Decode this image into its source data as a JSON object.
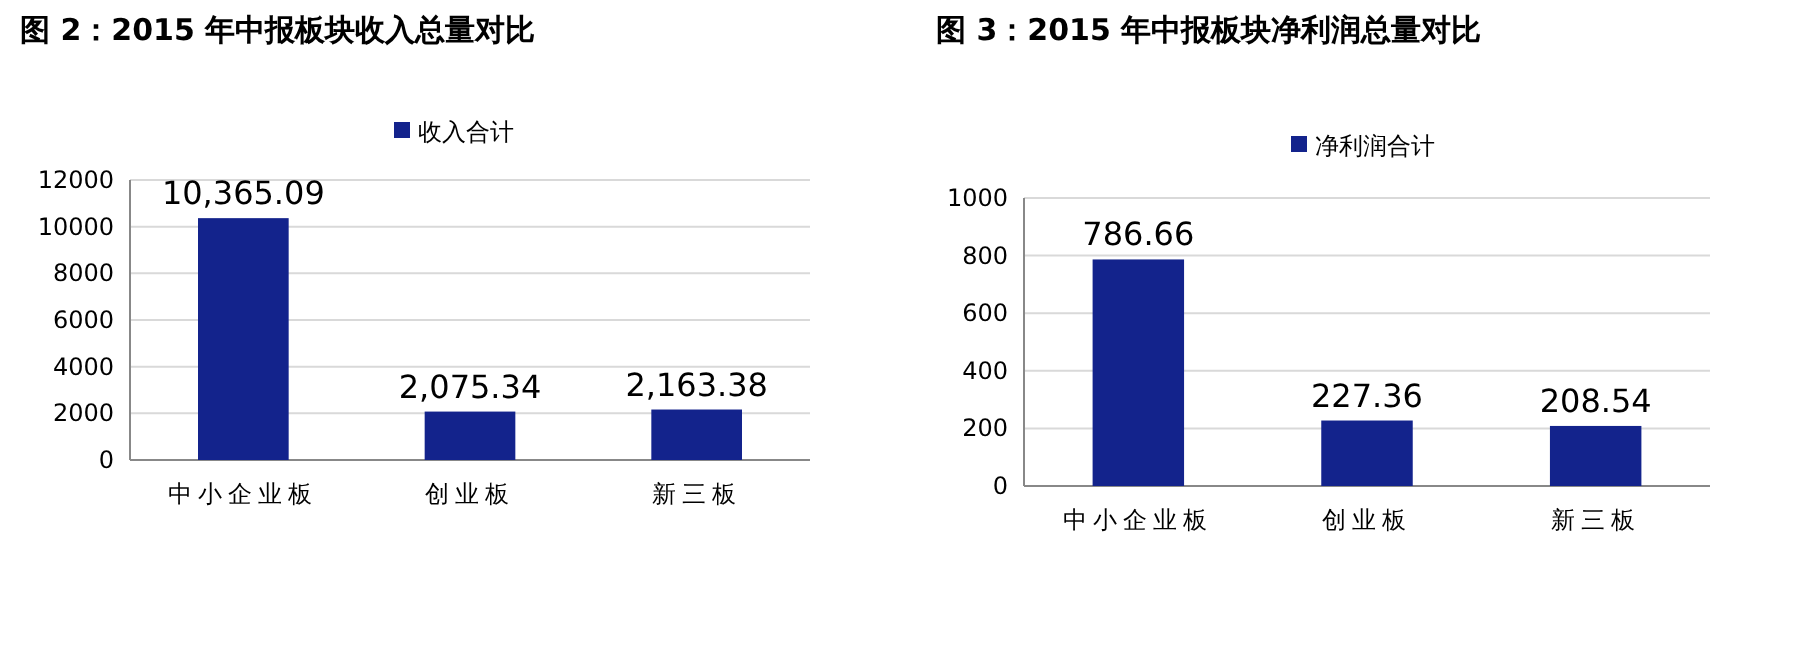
{
  "chart_data": [
    {
      "type": "bar",
      "title": "图 2：2015 年中报板块收入总量对比",
      "categories": [
        "中小企业板",
        "创业板",
        "新三板"
      ],
      "series": [
        {
          "name": "收入合计",
          "color": "#13238c",
          "values": [
            10365.09,
            2075.34,
            2163.38
          ],
          "value_labels": [
            "10,365.09",
            "2,075.34",
            "2,163.38"
          ]
        }
      ],
      "ylim": [
        0,
        12000
      ],
      "yticks": [
        0,
        2000,
        4000,
        6000,
        8000,
        10000,
        12000
      ],
      "grid": "y",
      "legend": "top"
    },
    {
      "type": "bar",
      "title": "图 3：2015 年中报板块净利润总量对比",
      "categories": [
        "中小企业板",
        "创业板",
        "新三板"
      ],
      "series": [
        {
          "name": "净利润合计",
          "color": "#13238c",
          "values": [
            786.66,
            227.36,
            208.54
          ]
        }
      ],
      "ylim": [
        0,
        1000
      ],
      "yticks": [
        0,
        200,
        400,
        600,
        800,
        1000
      ],
      "grid": "y",
      "legend": "top",
      "data_labels": true
    }
  ]
}
